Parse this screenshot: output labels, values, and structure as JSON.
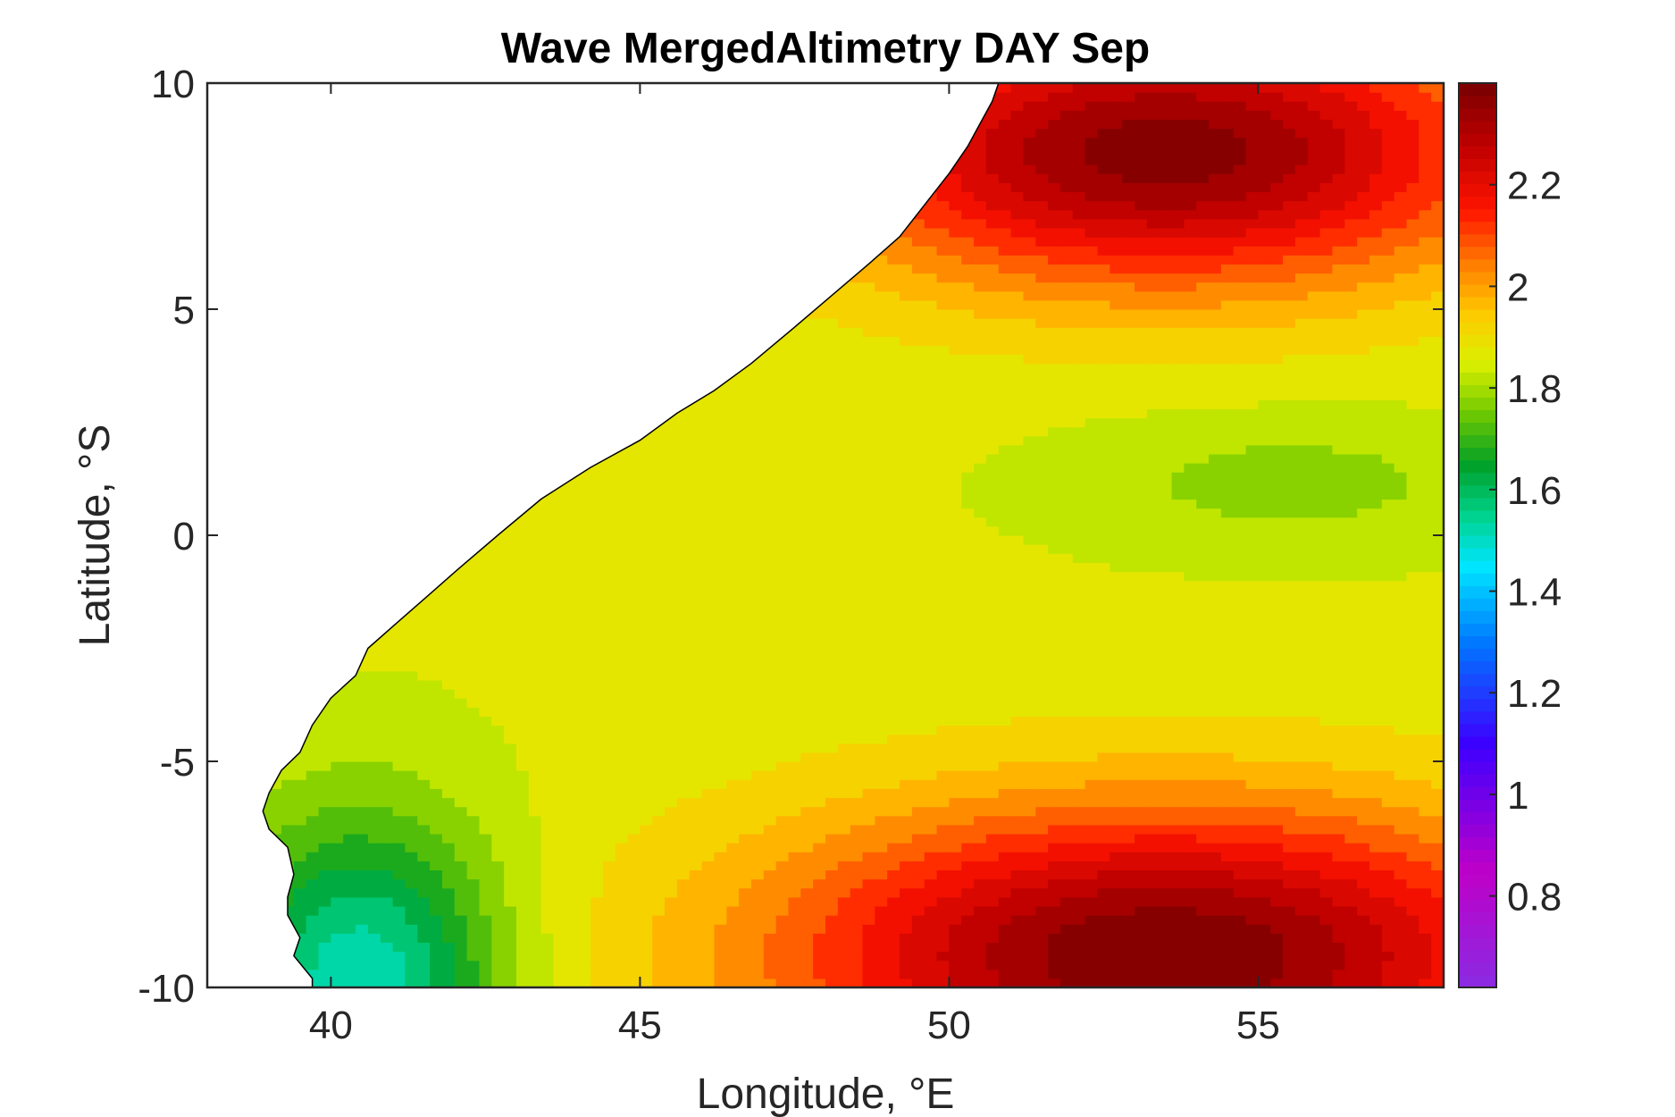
{
  "chart_data": {
    "type": "heatmap",
    "title": "Wave MergedAltimetry DAY Sep",
    "xlabel": "Longitude, °E",
    "ylabel": "Latitude, °S",
    "xlim": [
      38,
      58
    ],
    "ylim": [
      -10,
      10
    ],
    "x_ticks": [
      "40",
      "45",
      "50",
      "55"
    ],
    "x_tick_values": [
      40,
      45,
      50,
      55
    ],
    "y_ticks": [
      "10",
      "5",
      "0",
      "-5",
      "-10"
    ],
    "y_tick_values": [
      10,
      5,
      0,
      -5,
      -10
    ],
    "colorbar": {
      "range": [
        0.62,
        2.4
      ],
      "ticks": [
        "2.2",
        "2",
        "1.8",
        "1.6",
        "1.4",
        "1.2",
        "1",
        "0.8"
      ],
      "tick_values": [
        2.2,
        2.0,
        1.8,
        1.6,
        1.4,
        1.2,
        1.0,
        0.8
      ]
    },
    "contour_levels": [
      1.5,
      1.55,
      1.6,
      1.65,
      1.7,
      1.75,
      1.8,
      1.85,
      1.9,
      1.95,
      2.0,
      2.05,
      2.1,
      2.15,
      2.2,
      2.25,
      2.3,
      2.35
    ],
    "fields": {
      "north_max_lon": 53.5,
      "north_max_lat": 8.5,
      "north_max_value": 2.38,
      "south_max_lon": 53.5,
      "south_max_lat": -9.3,
      "south_max_value": 2.4,
      "equatorial_min_lon": 55.5,
      "equatorial_min_lat": 1.2,
      "equatorial_min_value": 1.78,
      "coastal_min_lon": 40.5,
      "coastal_min_lat": -10,
      "coastal_min_value": 1.5
    },
    "coastline": [
      [
        50.8,
        10
      ],
      [
        50.7,
        9.6
      ],
      [
        50.5,
        9.1
      ],
      [
        50.3,
        8.6
      ],
      [
        50.0,
        8.0
      ],
      [
        49.6,
        7.3
      ],
      [
        49.2,
        6.6
      ],
      [
        48.7,
        6.0
      ],
      [
        48.1,
        5.3
      ],
      [
        47.5,
        4.6
      ],
      [
        46.8,
        3.8
      ],
      [
        46.2,
        3.2
      ],
      [
        45.6,
        2.7
      ],
      [
        45.0,
        2.1
      ],
      [
        44.2,
        1.5
      ],
      [
        43.4,
        0.8
      ],
      [
        42.7,
        0.0
      ],
      [
        42.1,
        -0.7
      ],
      [
        41.6,
        -1.3
      ],
      [
        41.1,
        -1.9
      ],
      [
        40.6,
        -2.5
      ],
      [
        40.4,
        -3.1
      ],
      [
        40.0,
        -3.6
      ],
      [
        39.7,
        -4.2
      ],
      [
        39.5,
        -4.8
      ],
      [
        39.2,
        -5.2
      ],
      [
        39.0,
        -5.7
      ],
      [
        38.9,
        -6.1
      ],
      [
        39.0,
        -6.5
      ],
      [
        39.3,
        -6.9
      ],
      [
        39.4,
        -7.5
      ],
      [
        39.3,
        -8.0
      ],
      [
        39.3,
        -8.4
      ],
      [
        39.5,
        -8.9
      ],
      [
        39.4,
        -9.3
      ],
      [
        39.7,
        -9.8
      ],
      [
        39.7,
        -10
      ]
    ]
  }
}
